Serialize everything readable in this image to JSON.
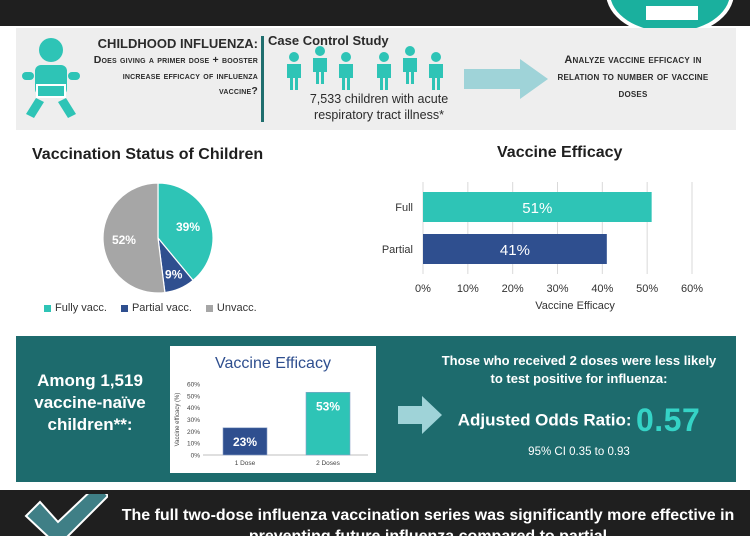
{
  "colors": {
    "teal": "#2ec4b6",
    "navy": "#2f4f8f",
    "gray": "#a6a6a6",
    "band_teal": "#1d6b6d",
    "accent_value": "#35d3c6"
  },
  "header": {
    "question_title": "CHILDHOOD INFLUENZA:",
    "question_body": "Does giving a primer dose + booster increase efficacy of influenza vaccine?",
    "case_title": "Case Control Study",
    "case_body": "7,533 children with acute respiratory tract illness*",
    "analyze": "Analyze vaccine efficacy in relation to number of vaccine doses",
    "icons": [
      "baby-icon",
      "children-group-icon",
      "arrow-right-icon"
    ]
  },
  "pie_section": {
    "title": "Vaccination Status of Children",
    "legend": [
      "Fully vacc.",
      "Partial vacc.",
      "Unvacc."
    ]
  },
  "bar_section": {
    "title": "Vaccine Efficacy"
  },
  "among": "Among 1,519 vaccine-naïve children**:",
  "result": {
    "statement": "Those who received 2 doses were less likely to test positive for influenza:",
    "aor_label": "Adjusted Odds Ratio:",
    "aor_value": "0.57",
    "ci": "95% CI 0.35 to 0.93"
  },
  "conclusion": "The full two-dose influenza vaccination series was significantly more effective in preventing future influenza compared to partial",
  "chart_data": [
    {
      "type": "pie",
      "title": "Vaccination Status of Children",
      "categories": [
        "Fully vacc.",
        "Partial vacc.",
        "Unvacc."
      ],
      "values": [
        39,
        9,
        52
      ],
      "labels": [
        "39%",
        "9%",
        "52%"
      ],
      "colors": [
        "#2ec4b6",
        "#2f4f8f",
        "#a6a6a6"
      ],
      "legend": "bottom"
    },
    {
      "type": "bar",
      "orientation": "horizontal",
      "title": "Vaccine Efficacy",
      "categories": [
        "Full",
        "Partial"
      ],
      "values": [
        51,
        41
      ],
      "labels": [
        "51%",
        "41%"
      ],
      "colors": [
        "#2ec4b6",
        "#2f4f8f"
      ],
      "xlabel": "Vaccine Efficacy",
      "xlim": [
        0,
        60
      ],
      "xticks": [
        "0%",
        "10%",
        "20%",
        "30%",
        "40%",
        "50%",
        "60%"
      ],
      "grid": true
    },
    {
      "type": "bar",
      "orientation": "vertical",
      "title": "Vaccine Efficacy",
      "categories": [
        "1 Dose",
        "2 Doses"
      ],
      "values": [
        23,
        53
      ],
      "labels": [
        "23%",
        "53%"
      ],
      "colors": [
        "#2f4f8f",
        "#2ec4b6"
      ],
      "ylabel": "Vaccine efficacy (%)",
      "ylim": [
        0,
        60
      ],
      "yticks": [
        "0%",
        "10%",
        "20%",
        "30%",
        "40%",
        "50%",
        "60%"
      ]
    }
  ]
}
